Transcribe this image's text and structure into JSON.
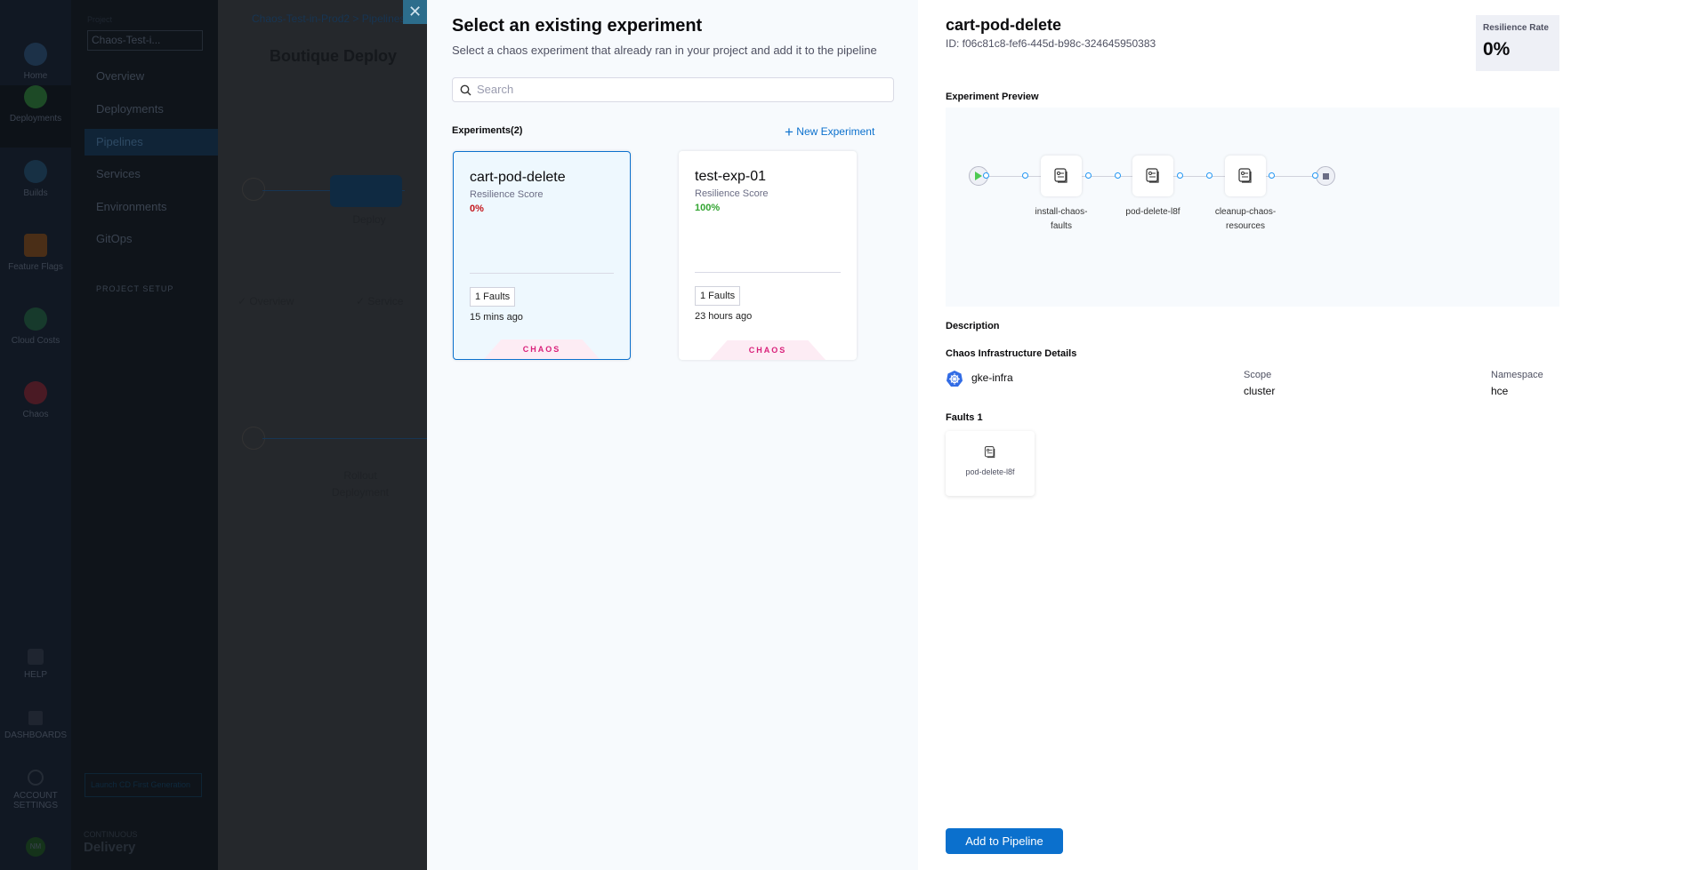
{
  "background": {
    "nav": [
      "Home",
      "Deployments",
      "Builds",
      "Feature Flags",
      "Cloud Costs",
      "Chaos"
    ],
    "nav_bottom": [
      "HELP",
      "DASHBOARDS",
      "ACCOUNT SETTINGS"
    ],
    "avatar": "NM",
    "project_label": "Project",
    "project_value": "Chaos-Test-i...",
    "subnav": [
      "Overview",
      "Deployments",
      "Pipelines",
      "Services",
      "Environments",
      "GitOps"
    ],
    "project_setup": "PROJECT SETUP",
    "launch": "Launch CD First Generation",
    "module_small": "CONTINUOUS",
    "module_big": "Delivery",
    "breadcrumb": "Chaos-Test-in-Prod2 > Pipelines",
    "pipeline_title": "Boutique Deploy",
    "stage1": "Deploy",
    "tab1": "Overview",
    "tab2": "Service",
    "stage2": "Rollout Deployment"
  },
  "modal": {
    "close": "✕",
    "title": "Select an existing experiment",
    "subtitle": "Select a chaos experiment that already ran in your project and add it to the pipeline",
    "search_placeholder": "Search",
    "experiments_label": "Experiments(2)",
    "new_experiment": "New Experiment",
    "experiments": [
      {
        "name": "cart-pod-delete",
        "score_label": "Resilience Score",
        "score": "0%",
        "score_color": "#c4161c",
        "faults": "1 Faults",
        "time": "15 mins ago",
        "tag": "CHAOS",
        "selected": true
      },
      {
        "name": "test-exp-01",
        "score_label": "Resilience Score",
        "score": "100%",
        "score_color": "#33a532",
        "faults": "1 Faults",
        "time": "23 hours ago",
        "tag": "CHAOS",
        "selected": false
      }
    ]
  },
  "detail": {
    "name": "cart-pod-delete",
    "id": "ID: f06c81c8-fef6-445d-b98c-324645950383",
    "rate_label": "Resilience Rate",
    "rate": "0%",
    "preview_label": "Experiment Preview",
    "steps": [
      "install-chaos-faults",
      "pod-delete-l8f",
      "cleanup-chaos-resources"
    ],
    "step_lines": [
      [
        "install-chaos-",
        "faults"
      ],
      [
        "pod-delete-l8f",
        ""
      ],
      [
        "cleanup-chaos-",
        "resources"
      ]
    ],
    "description_label": "Description",
    "infra_label": "Chaos Infrastructure Details",
    "infra_name": "gke-infra",
    "scope_label": "Scope",
    "scope": "cluster",
    "namespace_label": "Namespace",
    "namespace": "hce",
    "faults_label": "Faults 1",
    "faults": [
      "pod-delete-l8f"
    ],
    "add_button": "Add to Pipeline"
  },
  "colors": {
    "primary": "#0b70cd",
    "danger": "#c4161c",
    "success": "#33a532",
    "chaos": "#d9207a"
  }
}
